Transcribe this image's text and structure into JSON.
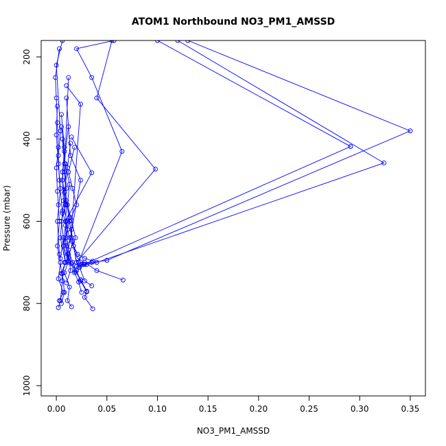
{
  "chart_data": {
    "type": "line",
    "title": "ATOM1 Northbound NO3_PM1_AMSSD",
    "xlabel": "NO3_PM1_AMSSD",
    "ylabel": "Pressure (mbar)",
    "xlim": [
      -0.015,
      0.365
    ],
    "ylim": [
      1025,
      160
    ],
    "y_reversed": true,
    "x_ticks": [
      0.0,
      0.05,
      0.1,
      0.15,
      0.2,
      0.25,
      0.3,
      0.35
    ],
    "x_tick_labels": [
      "0.00",
      "0.05",
      "0.10",
      "0.15",
      "0.20",
      "0.25",
      "0.30",
      "0.35"
    ],
    "y_ticks": [
      200,
      400,
      600,
      800,
      1000
    ],
    "y_tick_labels": [
      "200",
      "400",
      "600",
      "800",
      "1000"
    ],
    "grid": false,
    "legend": "none",
    "series_color": "#0000ff",
    "marker": "open-circle",
    "series": [
      {
        "x": [
          0.003,
          0.007,
          0.002,
          0.004,
          0.001,
          0.003,
          0.002,
          0.001,
          0.0,
          0.002,
          0.001,
          0.0,
          -0.001,
          0.003
        ],
        "y": [
          793,
          773,
          740,
          700,
          660,
          600,
          560,
          527,
          470,
          420,
          360,
          300,
          250,
          180
        ]
      },
      {
        "x": [
          0.002,
          0.004,
          0.006,
          0.003,
          0.001,
          0.004,
          0.002,
          0.0,
          0.001
        ],
        "y": [
          810,
          793,
          745,
          680,
          600,
          520,
          460,
          390,
          320
        ]
      },
      {
        "x": [
          0.005,
          0.008,
          0.006,
          0.009,
          0.004,
          0.006,
          0.003,
          0.002,
          0.004,
          0.0,
          0.006
        ],
        "y": [
          800,
          773,
          727,
          700,
          640,
          580,
          500,
          440,
          380,
          220,
          160
        ]
      },
      {
        "x": [
          0.015,
          0.011,
          0.013,
          0.008,
          0.012,
          0.007,
          0.009,
          0.01,
          0.006,
          0.008,
          0.005
        ],
        "y": [
          808,
          793,
          760,
          725,
          697,
          660,
          610,
          560,
          500,
          420,
          340
        ]
      },
      {
        "x": [
          0.036,
          0.028,
          0.03,
          0.024,
          0.019,
          0.016,
          0.012,
          0.01,
          0.013,
          0.008,
          0.011,
          0.014
        ],
        "y": [
          813,
          785,
          770,
          742,
          723,
          700,
          670,
          640,
          590,
          530,
          470,
          410
        ]
      },
      {
        "x": [
          0.03,
          0.024,
          0.02,
          0.012,
          0.009,
          0.01,
          0.007,
          0.006,
          0.012
        ],
        "y": [
          772,
          745,
          720,
          700,
          650,
          600,
          550,
          480,
          370
        ]
      },
      {
        "x": [
          0.025,
          0.022,
          0.018,
          0.015,
          0.011,
          0.024,
          0.014,
          0.01
        ],
        "y": [
          773,
          748,
          725,
          703,
          680,
          500,
          440,
          300
        ]
      },
      {
        "x": [
          0.035,
          0.028,
          0.023,
          0.02,
          0.016,
          0.015,
          0.024,
          0.01
        ],
        "y": [
          757,
          745,
          712,
          700,
          650,
          620,
          315,
          270
        ]
      },
      {
        "x": [
          0.066,
          0.04,
          0.028,
          0.021,
          0.017,
          0.013,
          0.01,
          0.008,
          0.012
        ],
        "y": [
          743,
          720,
          700,
          690,
          660,
          600,
          550,
          480,
          250
        ]
      },
      {
        "x": [
          0.036,
          0.028,
          0.021,
          0.017,
          0.013,
          0.009,
          0.035,
          0.015
        ],
        "y": [
          697,
          690,
          680,
          660,
          640,
          600,
          482,
          395
        ]
      },
      {
        "x": [
          0.025,
          0.02,
          0.098,
          0.04,
          0.055
        ],
        "y": [
          705,
          700,
          473,
          300,
          160
        ]
      },
      {
        "x": [
          0.028,
          0.022,
          0.065,
          0.035,
          0.02,
          0.057
        ],
        "y": [
          705,
          700,
          430,
          250,
          180,
          160
        ]
      },
      {
        "x": [
          0.02,
          0.025,
          0.035,
          0.05,
          0.35,
          0.13
        ],
        "y": [
          710,
          705,
          700,
          695,
          380,
          160
        ]
      },
      {
        "x": [
          0.022,
          0.03,
          0.04,
          0.324,
          0.12
        ],
        "y": [
          712,
          705,
          700,
          458,
          160
        ]
      },
      {
        "x": [
          0.02,
          0.027,
          0.291,
          0.1
        ],
        "y": [
          710,
          705,
          418,
          160
        ]
      },
      {
        "x": [
          0.008,
          0.012,
          0.01,
          0.015,
          0.013,
          0.02,
          0.016,
          0.012,
          0.018
        ],
        "y": [
          700,
          690,
          660,
          640,
          600,
          560,
          520,
          480,
          420
        ]
      },
      {
        "x": [
          0.01,
          0.014,
          0.012,
          0.019,
          0.015,
          0.011,
          0.013,
          0.009
        ],
        "y": [
          750,
          720,
          680,
          640,
          598,
          560,
          510,
          460
        ]
      },
      {
        "x": [
          0.005,
          0.009,
          0.007,
          0.011,
          0.006,
          0.01,
          0.008,
          0.006
        ],
        "y": [
          727,
          700,
          660,
          620,
          575,
          520,
          460,
          400
        ]
      },
      {
        "x": [
          0.004,
          0.007,
          0.005,
          0.009,
          0.006,
          0.008,
          0.005
        ],
        "y": [
          690,
          640,
          600,
          560,
          500,
          430,
          370
        ]
      }
    ]
  }
}
